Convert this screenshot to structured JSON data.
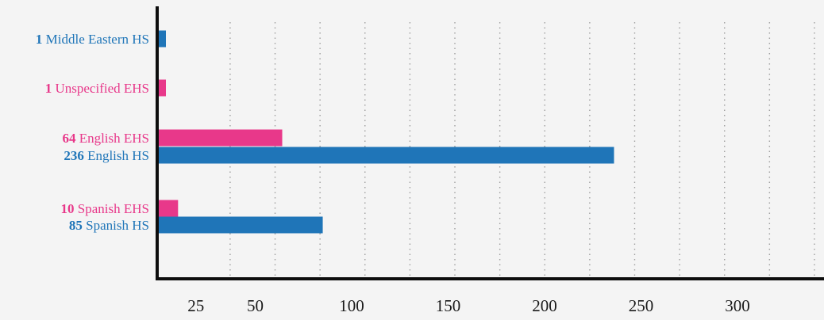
{
  "chart_data": {
    "type": "bar",
    "orientation": "horizontal",
    "title": "",
    "xlabel": "",
    "ylabel": "",
    "xlim": [
      0,
      350
    ],
    "grid": true,
    "legend": "none",
    "colors": {
      "HS": "#1f75b8",
      "EHS": "#e8388a"
    },
    "bars": [
      {
        "count": "1",
        "label": "Middle Eastern HS",
        "value": 1,
        "group": "HS"
      },
      {
        "count": "1",
        "label": "Unspecified EHS",
        "value": 1,
        "group": "EHS"
      },
      {
        "count": "64",
        "label": "English EHS",
        "value": 64,
        "group": "EHS"
      },
      {
        "count": "236",
        "label": "English HS",
        "value": 236,
        "group": "HS"
      },
      {
        "count": "10",
        "label": "Spanish EHS",
        "value": 10,
        "group": "EHS"
      },
      {
        "count": "85",
        "label": "Spanish HS",
        "value": 85,
        "group": "HS"
      }
    ],
    "x_ticks": [
      {
        "label": "25",
        "value": 25
      },
      {
        "label": "50",
        "value": 50
      },
      {
        "label": "100",
        "value": 100
      },
      {
        "label": "150",
        "value": 150
      },
      {
        "label": "200",
        "value": 200
      },
      {
        "label": "250",
        "value": 250
      },
      {
        "label": "300",
        "value": 300
      }
    ]
  }
}
